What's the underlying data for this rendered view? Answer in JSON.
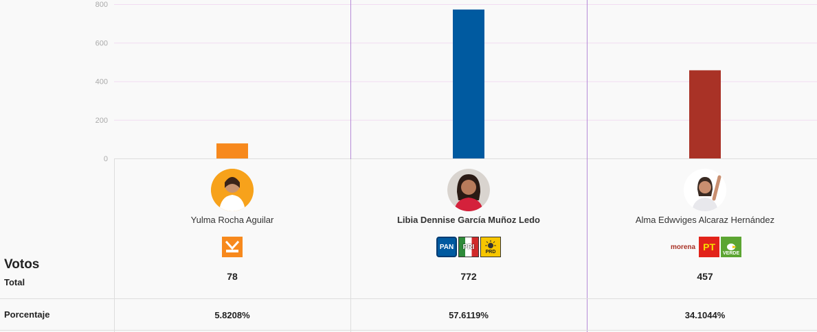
{
  "chart_data": {
    "type": "bar",
    "y_ticks": [
      "0",
      "200",
      "400",
      "600",
      "800"
    ],
    "ylim": [
      0,
      800
    ],
    "categories": [
      "Yulma Rocha Aguilar",
      "Libia Dennise García Muñoz Ledo",
      "Alma Edwviges Alcaraz Hernández"
    ],
    "values": [
      78,
      772,
      457
    ],
    "colors": [
      "#f7891d",
      "#005aa0",
      "#a93226"
    ]
  },
  "table": {
    "votos_label": "Votos",
    "total_label": "Total",
    "porcentaje_label": "Porcentaje",
    "candidates": [
      {
        "name": "Yulma Rocha Aguilar",
        "votes": "78",
        "percent": "5.8208%",
        "parties": [
          {
            "label": "MOVIMIENTO CIUDADANO",
            "color": "#f7891d"
          }
        ]
      },
      {
        "name": "Libia Dennise García Muñoz Ledo",
        "votes": "772",
        "percent": "57.6119%",
        "parties": [
          {
            "label": "PAN",
            "color": "#005aa0"
          },
          {
            "label": "PRI",
            "color": "#d02a2a"
          },
          {
            "label": "PRD",
            "color": "#f7c600"
          }
        ]
      },
      {
        "name": "Alma Edwviges Alcaraz Hernández",
        "votes": "457",
        "percent": "34.1044%",
        "parties": [
          {
            "label": "morena",
            "color": "#a93226"
          },
          {
            "label": "PT",
            "color": "#e2231a"
          },
          {
            "label": "VERDE",
            "color": "#5ca532"
          }
        ]
      }
    ]
  }
}
